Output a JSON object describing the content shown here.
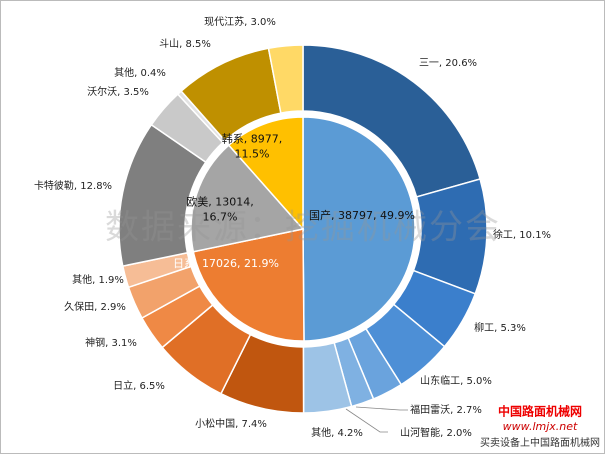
{
  "chart_data": {
    "type": "sunburst",
    "inner": {
      "values": [
        38797,
        17026,
        13014,
        8977
      ],
      "value_labels": [
        [
          "国产, 38797, 49.9%"
        ],
        [
          "日系, 17026, 21.9%"
        ],
        [
          "欧美, 13014,",
          "16.7%"
        ],
        [
          "韩系, 8977,",
          "11.5%"
        ]
      ],
      "colors": [
        "#5b9bd5",
        "#ed7d31",
        "#a5a5a5",
        "#ffc000"
      ]
    },
    "outer": {
      "values": [
        20.6,
        10.1,
        5.3,
        5.0,
        2.7,
        2.0,
        4.2,
        7.4,
        6.5,
        3.1,
        2.9,
        1.9,
        12.8,
        3.5,
        0.4,
        8.5,
        3.0
      ],
      "value_labels": [
        "三一, 20.6%",
        "徐工, 10.1%",
        "柳工, 5.3%",
        "山东临工, 5.0%",
        "福田雷沃, 2.7%",
        "山河智能, 2.0%",
        "其他, 4.2%",
        "小松中国, 7.4%",
        "日立, 6.5%",
        "神钢, 3.1%",
        "久保田, 2.9%",
        "其他, 1.9%",
        "卡特彼勒, 12.8%",
        "沃尔沃, 3.5%",
        "其他, 0.4%",
        "斗山, 8.5%",
        "现代江苏, 3.0%"
      ],
      "colors": [
        "#2a5f97",
        "#2e6cb2",
        "#3b7fcc",
        "#4d8fd6",
        "#6aa3dd",
        "#7fb1e2",
        "#9dc3e6",
        "#c0560f",
        "#e06f26",
        "#ef8945",
        "#f2a26b",
        "#f6bd96",
        "#7f7f7f",
        "#c9c9c9",
        "#e3e3e3",
        "#bf9000",
        "#ffd966"
      ]
    },
    "watermark": "数据来源：挖掘机械分会",
    "logo": [
      "中国路面机械网",
      "www.lmjx.net",
      "买卖设备上中国路面机械网"
    ]
  }
}
